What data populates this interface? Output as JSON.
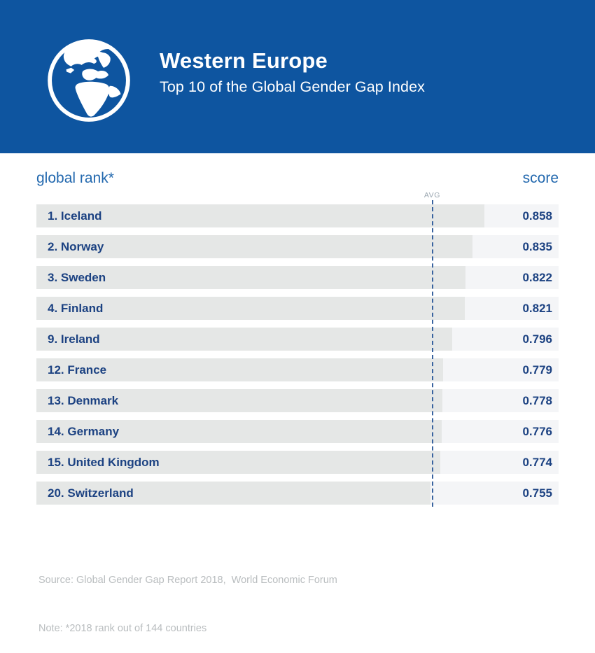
{
  "header": {
    "title": "Western Europe",
    "subtitle": "Top 10 of the Global Gender Gap Index"
  },
  "table": {
    "rank_header": "global rank*",
    "score_header": "score",
    "avg_label": "AVG"
  },
  "chart_data": {
    "type": "bar",
    "orientation": "horizontal",
    "title": "Western Europe",
    "subtitle": "Top 10 of the Global Gender Gap Index",
    "category_label": "global rank*",
    "value_label": "score",
    "xlim": [
      0,
      1
    ],
    "avg_line": {
      "label": "AVG",
      "value": 0.758
    },
    "rows": [
      {
        "rank": "1",
        "country": "Iceland",
        "label": "1. Iceland",
        "score": 0.858,
        "score_label": "0.858"
      },
      {
        "rank": "2",
        "country": "Norway",
        "label": "2. Norway",
        "score": 0.835,
        "score_label": "0.835"
      },
      {
        "rank": "3",
        "country": "Sweden",
        "label": "3. Sweden",
        "score": 0.822,
        "score_label": "0.822"
      },
      {
        "rank": "4",
        "country": "Finland",
        "label": "4. Finland",
        "score": 0.821,
        "score_label": "0.821"
      },
      {
        "rank": "9",
        "country": "Ireland",
        "label": "9. Ireland",
        "score": 0.796,
        "score_label": "0.796"
      },
      {
        "rank": "12",
        "country": "France",
        "label": "12. France",
        "score": 0.779,
        "score_label": "0.779"
      },
      {
        "rank": "13",
        "country": "Denmark",
        "label": "13. Denmark",
        "score": 0.778,
        "score_label": "0.778"
      },
      {
        "rank": "14",
        "country": "Germany",
        "label": "14. Germany",
        "score": 0.776,
        "score_label": "0.776"
      },
      {
        "rank": "15",
        "country": "United Kingdom",
        "label": "15. United Kingdom",
        "score": 0.774,
        "score_label": "0.774"
      },
      {
        "rank": "20",
        "country": "Switzerland",
        "label": "20. Switzerland",
        "score": 0.755,
        "score_label": "0.755"
      }
    ]
  },
  "footer": {
    "source": "Source: Global Gender Gap Report 2018,  World Economic Forum",
    "note": "Note: *2018 rank out of 144 countries"
  },
  "colors": {
    "banner_blue": "#0e55a0",
    "header_text_blue": "#2268ae",
    "row_text_navy": "#1c4282",
    "bar_gray": "#e5e7e6",
    "row_bg_light": "#f4f5f7",
    "avg_label_gray": "#98a4ae",
    "avg_line_blue": "#39639f",
    "footer_gray": "#b9bdbf"
  }
}
